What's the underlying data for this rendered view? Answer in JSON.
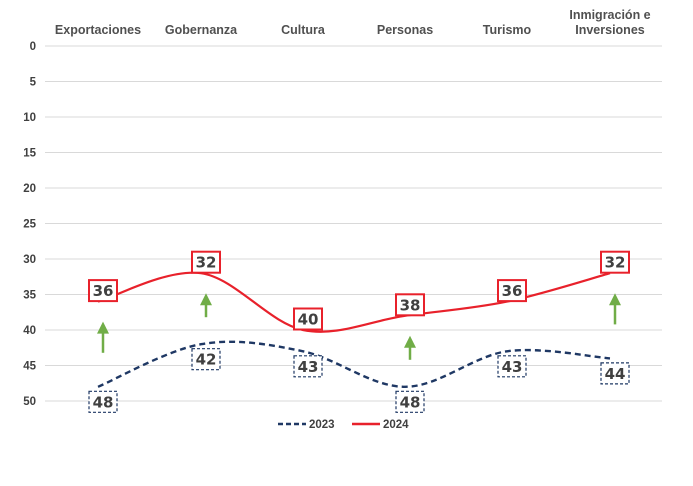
{
  "chart_data": {
    "type": "line",
    "title": "",
    "xlabel": "",
    "ylabel": "",
    "y_reversed": true,
    "ylim": [
      0,
      50
    ],
    "yticks": [
      0,
      5,
      10,
      15,
      20,
      25,
      30,
      35,
      40,
      45,
      50
    ],
    "categories": [
      [
        "Exportaciones"
      ],
      [
        "Gobernanza"
      ],
      [
        "Cultura"
      ],
      [
        "Personas"
      ],
      [
        "Turismo"
      ],
      [
        "Inmigración e",
        "Inversiones"
      ]
    ],
    "series": [
      {
        "name": "2023",
        "values": [
          48,
          42,
          43,
          48,
          43,
          44
        ],
        "color": "#1f3864",
        "style": "dashed"
      },
      {
        "name": "2024",
        "values": [
          36,
          32,
          40,
          38,
          36,
          32
        ],
        "color": "#e8212b",
        "style": "solid"
      }
    ],
    "improvement_arrows": [
      "Exportaciones",
      "Gobernanza",
      "Personas",
      "Inmigración e Inversiones"
    ],
    "arrow_color": "#70ad47",
    "grid": true,
    "legend": "bottom-center"
  }
}
